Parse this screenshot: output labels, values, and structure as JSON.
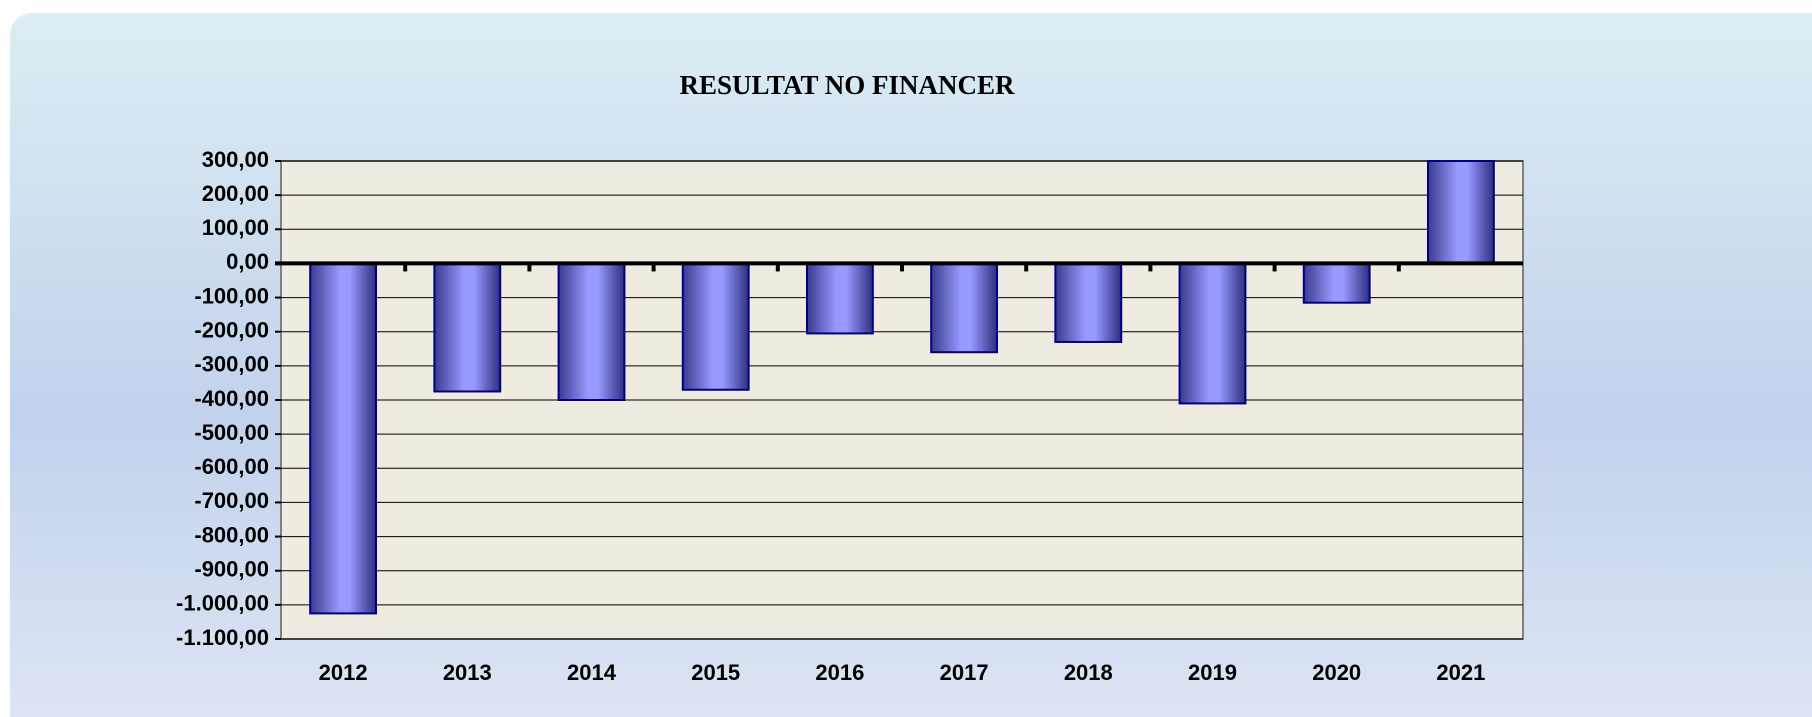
{
  "chart_data": {
    "type": "bar",
    "title": "RESULTAT NO FINANCER",
    "categories": [
      "2012",
      "2013",
      "2014",
      "2015",
      "2016",
      "2017",
      "2018",
      "2019",
      "2020",
      "2021"
    ],
    "values": [
      -1025,
      -375,
      -400,
      -370,
      -205,
      -260,
      -230,
      -410,
      -115,
      300
    ],
    "color": "#9999ff",
    "ylim": [
      -1100,
      300
    ],
    "yticks": [
      {
        "value": 300,
        "label": "300,00"
      },
      {
        "value": 200,
        "label": "200,00"
      },
      {
        "value": 100,
        "label": "100,00"
      },
      {
        "value": 0,
        "label": "0,00"
      },
      {
        "value": -100,
        "label": "-100,00"
      },
      {
        "value": -200,
        "label": "-200,00"
      },
      {
        "value": -300,
        "label": "-300,00"
      },
      {
        "value": -400,
        "label": "-400,00"
      },
      {
        "value": -500,
        "label": "-500,00"
      },
      {
        "value": -600,
        "label": "-600,00"
      },
      {
        "value": -700,
        "label": "-700,00"
      },
      {
        "value": -800,
        "label": "-800,00"
      },
      {
        "value": -900,
        "label": "-900,00"
      },
      {
        "value": -1000,
        "label": "-1.000,00"
      },
      {
        "value": -1100,
        "label": "-1.100,00"
      }
    ],
    "grid": true
  }
}
